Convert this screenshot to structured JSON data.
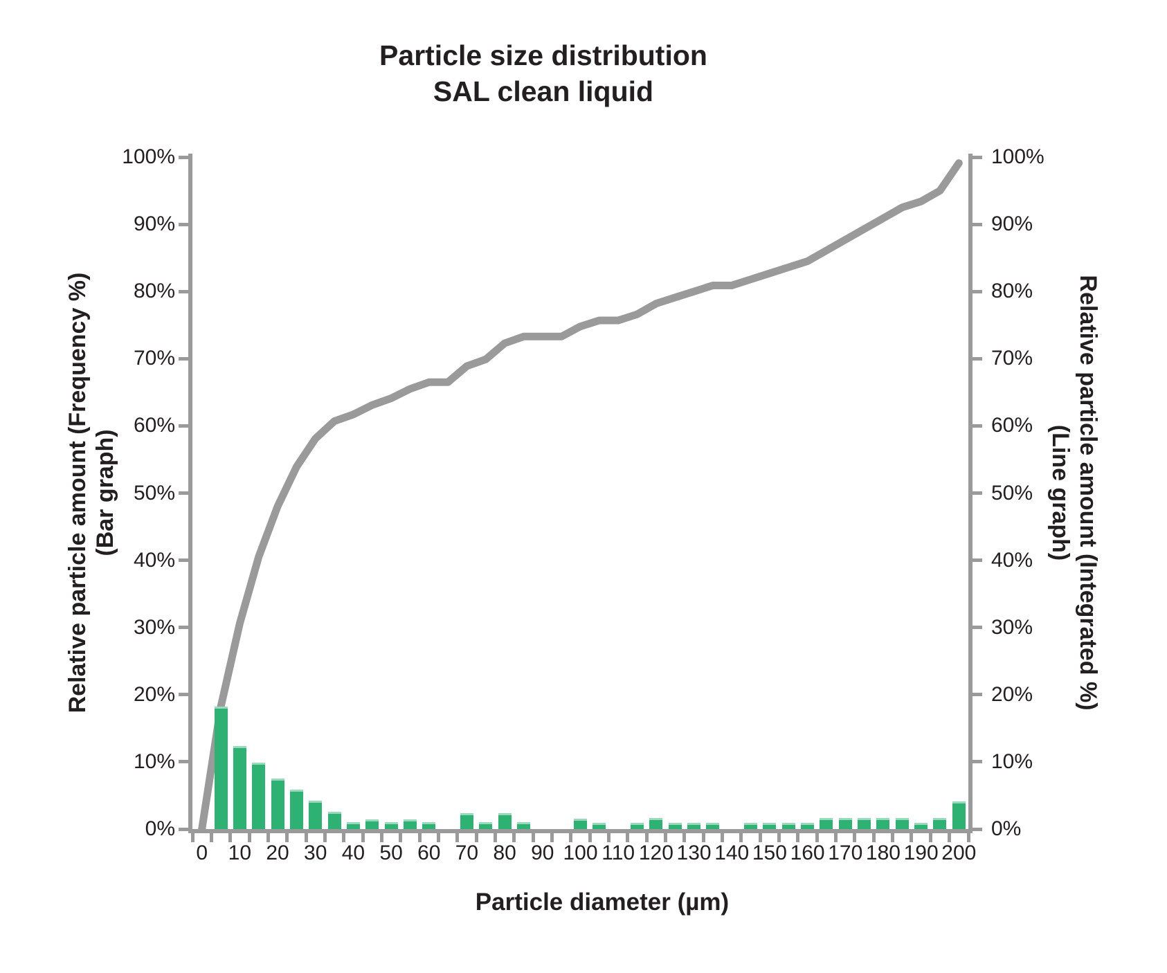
{
  "title": {
    "line1": "Particle size distribution",
    "line2": "SAL clean liquid"
  },
  "axes": {
    "x": {
      "title": "Particle diameter (µm)",
      "tick_labels": [
        "0",
        "10",
        "20",
        "30",
        "40",
        "50",
        "60",
        "70",
        "80",
        "90",
        "100",
        "110",
        "120",
        "130",
        "140",
        "150",
        "160",
        "170",
        "180",
        "190",
        "200"
      ]
    },
    "y_left": {
      "title_line1": "Relative particle amount (Frequency %)",
      "title_line2": "(Bar graph)",
      "tick_labels": [
        "0%",
        "10%",
        "20%",
        "30%",
        "40%",
        "50%",
        "60%",
        "70%",
        "80%",
        "90%",
        "100%"
      ]
    },
    "y_right": {
      "title_line1": "Relative particle amount (Integrated %)",
      "title_line2": "(Line graph)",
      "tick_labels": [
        "0%",
        "10%",
        "20%",
        "30%",
        "40%",
        "50%",
        "60%",
        "70%",
        "80%",
        "90%",
        "100%"
      ]
    }
  },
  "colors": {
    "bar_fill": "#2eb273",
    "bar_edge": "#9ad9bb",
    "line": "#9a9a9a",
    "axis": "#9a9a9a",
    "text": "#231f20",
    "background": "#ffffff"
  },
  "chart_data": {
    "type": "bar+line",
    "title": "Particle size distribution – SAL clean liquid",
    "xlabel": "Particle diameter (µm)",
    "x_um": [
      0,
      5,
      10,
      15,
      20,
      25,
      30,
      35,
      40,
      45,
      50,
      55,
      60,
      65,
      70,
      75,
      80,
      85,
      90,
      95,
      100,
      105,
      110,
      115,
      120,
      125,
      130,
      135,
      140,
      145,
      150,
      155,
      160,
      165,
      170,
      175,
      180,
      185,
      190,
      195,
      200
    ],
    "x_axis_labeled_every_um": 10,
    "y_left_label": "Relative particle amount (Frequency %) (Bar graph)",
    "y_right_label": "Relative particle amount (Integrated %) (Line graph)",
    "ylim_left": [
      0,
      100
    ],
    "ylim_right": [
      0,
      100
    ],
    "grid": false,
    "legend": false,
    "series": [
      {
        "name": "Frequency %",
        "type": "bar",
        "axis": "left",
        "values": [
          0,
          18.2,
          12.4,
          9.9,
          7.5,
          5.9,
          4.2,
          2.6,
          1.0,
          1.4,
          1.0,
          1.4,
          1.0,
          0,
          2.4,
          1.0,
          2.4,
          1.0,
          0,
          0,
          1.5,
          0.9,
          0,
          0.9,
          1.6,
          0.9,
          0.9,
          0.9,
          0,
          0.9,
          0.9,
          0.9,
          0.9,
          1.6,
          1.6,
          1.6,
          1.6,
          1.6,
          0.9,
          1.6,
          4.1
        ]
      },
      {
        "name": "Integrated %",
        "type": "line",
        "axis": "right",
        "values": [
          0,
          18.2,
          30.6,
          40.5,
          48.0,
          53.9,
          58.1,
          60.7,
          61.7,
          63.1,
          64.1,
          65.5,
          66.5,
          66.5,
          68.9,
          69.9,
          72.3,
          73.3,
          73.3,
          73.3,
          74.8,
          75.7,
          75.7,
          76.6,
          78.2,
          79.1,
          80.0,
          80.9,
          80.9,
          81.8,
          82.7,
          83.6,
          84.5,
          86.1,
          87.7,
          89.3,
          90.9,
          92.5,
          93.4,
          95.0,
          99.1
        ]
      }
    ]
  }
}
